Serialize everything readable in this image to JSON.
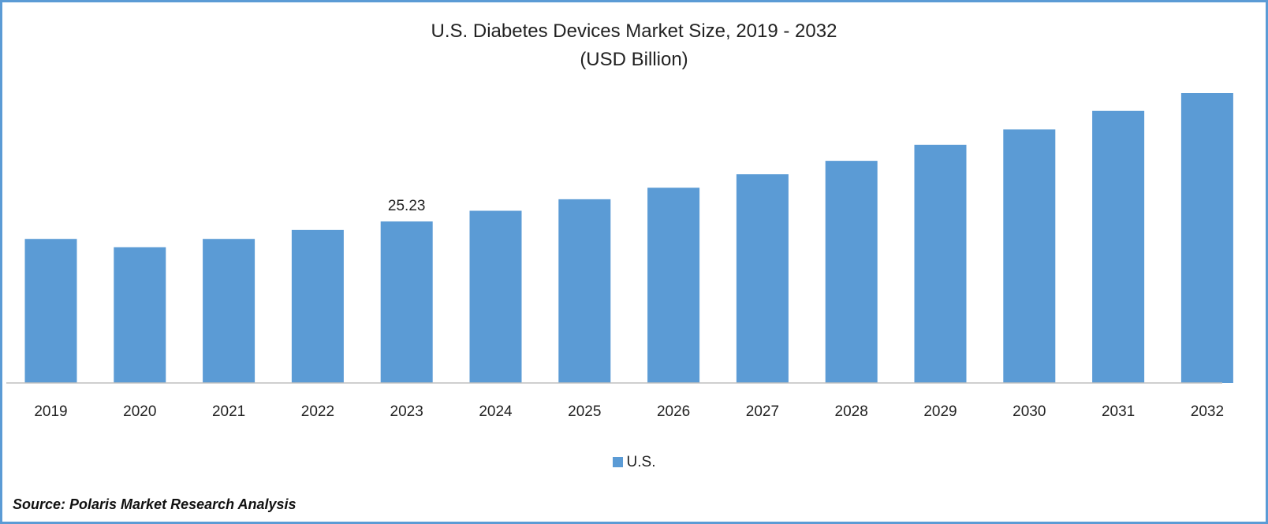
{
  "colors": {
    "bar": "#5b9bd5",
    "border": "#5b9bd5",
    "axis": "#bfbfbf"
  },
  "chart_data": {
    "type": "bar",
    "title": "U.S. Diabetes Devices Market Size, 2019 - 2032",
    "subtitle": "(USD Billion)",
    "categories": [
      "2019",
      "2020",
      "2021",
      "2022",
      "2023",
      "2024",
      "2025",
      "2026",
      "2027",
      "2028",
      "2029",
      "2030",
      "2031",
      "2032"
    ],
    "series": [
      {
        "name": "U.S.",
        "values": [
          22.5,
          21.2,
          22.5,
          23.9,
          25.23,
          26.9,
          28.7,
          30.5,
          32.6,
          34.7,
          37.2,
          39.6,
          42.5,
          45.3
        ]
      }
    ],
    "data_labels": [
      {
        "index": 4,
        "text": "25.23"
      }
    ],
    "ylim": [
      0,
      59
    ],
    "grid": false,
    "legend_position": "bottom"
  },
  "source": "Source: Polaris Market Research Analysis"
}
